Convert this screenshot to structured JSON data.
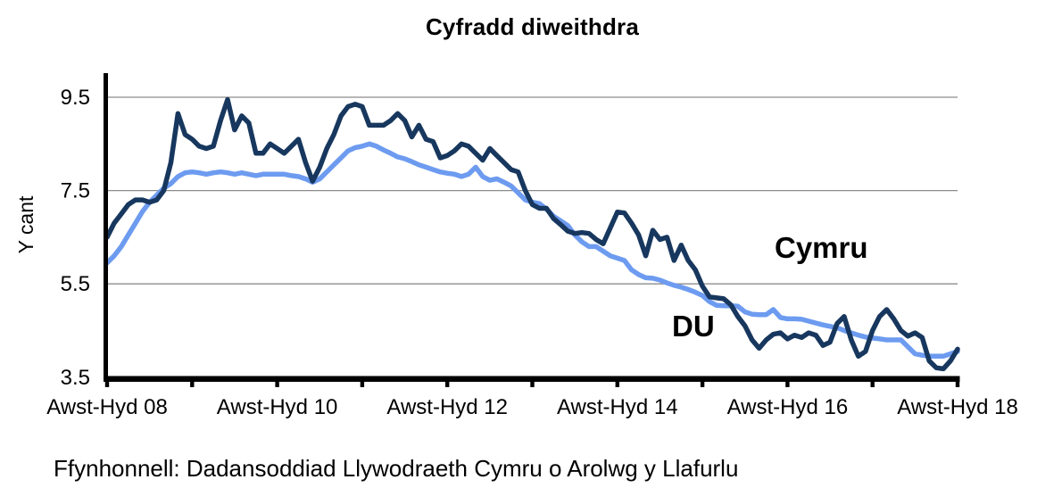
{
  "source": "Ffynhonnell: Dadansoddiad Llywodraeth Cymru o Arolwg y Llafurlu",
  "chart_data": {
    "type": "line",
    "title": "Cyfradd diweithdra",
    "ylabel": "Y cant",
    "xlabel": "",
    "ylim": [
      3.5,
      9.96
    ],
    "y_ticks": [
      9.5,
      7.5,
      5.5,
      3.5
    ],
    "gridline_values": [
      9.5,
      7.5,
      5.5
    ],
    "gridline_color": "#8C8C8C",
    "axis_color": "#000000",
    "legend_position": "inline-annotations",
    "x_tick_count": 11,
    "x_tick_labels": [
      "Awst-Hyd 08",
      "Awst-Hyd 10",
      "Awst-Hyd 12",
      "Awst-Hyd 14",
      "Awst-Hyd 16",
      "Awst-Hyd 18"
    ],
    "series": [
      {
        "name": "DU",
        "color": "#6D9BF0",
        "values": [
          5.95,
          6.1,
          6.3,
          6.55,
          6.8,
          7.05,
          7.25,
          7.4,
          7.55,
          7.65,
          7.8,
          7.88,
          7.9,
          7.88,
          7.85,
          7.88,
          7.9,
          7.88,
          7.85,
          7.88,
          7.85,
          7.82,
          7.85,
          7.85,
          7.85,
          7.85,
          7.82,
          7.8,
          7.75,
          7.68,
          7.75,
          7.9,
          8.05,
          8.2,
          8.35,
          8.42,
          8.45,
          8.5,
          8.45,
          8.37,
          8.3,
          8.22,
          8.18,
          8.12,
          8.05,
          8.0,
          7.95,
          7.9,
          7.87,
          7.85,
          7.8,
          7.85,
          8.0,
          7.8,
          7.72,
          7.75,
          7.68,
          7.6,
          7.45,
          7.3,
          7.25,
          7.22,
          7.1,
          6.95,
          6.85,
          6.75,
          6.55,
          6.4,
          6.3,
          6.3,
          6.2,
          6.1,
          6.05,
          6.0,
          5.8,
          5.7,
          5.63,
          5.62,
          5.58,
          5.52,
          5.47,
          5.43,
          5.38,
          5.32,
          5.25,
          5.12,
          5.04,
          5.03,
          5.03,
          5.02,
          4.9,
          4.85,
          4.84,
          4.84,
          4.95,
          4.78,
          4.75,
          4.75,
          4.74,
          4.7,
          4.66,
          4.62,
          4.59,
          4.56,
          4.5,
          4.45,
          4.4,
          4.36,
          4.34,
          4.32,
          4.3,
          4.3,
          4.3,
          4.15,
          4.0,
          3.97,
          3.95,
          3.95,
          3.95,
          4.0,
          4.05
        ]
      },
      {
        "name": "Cymru",
        "color": "#17375E",
        "values": [
          6.5,
          6.8,
          7.0,
          7.2,
          7.3,
          7.3,
          7.25,
          7.3,
          7.5,
          8.1,
          9.15,
          8.7,
          8.6,
          8.45,
          8.4,
          8.45,
          9.0,
          9.45,
          8.8,
          9.1,
          8.95,
          8.3,
          8.3,
          8.5,
          8.4,
          8.3,
          8.45,
          8.6,
          8.1,
          7.7,
          8.0,
          8.4,
          8.7,
          9.1,
          9.3,
          9.35,
          9.3,
          8.9,
          8.9,
          8.9,
          9.0,
          9.15,
          9.0,
          8.65,
          8.9,
          8.6,
          8.55,
          8.2,
          8.25,
          8.35,
          8.5,
          8.45,
          8.3,
          8.15,
          8.4,
          8.25,
          8.1,
          7.95,
          7.9,
          7.5,
          7.2,
          7.12,
          7.12,
          6.9,
          6.77,
          6.63,
          6.58,
          6.6,
          6.58,
          6.45,
          6.36,
          6.7,
          7.04,
          7.02,
          6.8,
          6.55,
          6.1,
          6.65,
          6.45,
          6.5,
          6.0,
          6.33,
          6.0,
          5.8,
          5.45,
          5.22,
          5.2,
          5.18,
          5.05,
          4.8,
          4.6,
          4.3,
          4.12,
          4.3,
          4.42,
          4.45,
          4.32,
          4.4,
          4.35,
          4.45,
          4.4,
          4.18,
          4.25,
          4.65,
          4.8,
          4.3,
          3.95,
          4.05,
          4.5,
          4.8,
          4.95,
          4.75,
          4.5,
          4.38,
          4.45,
          4.35,
          3.85,
          3.7,
          3.68,
          3.85,
          4.1
        ]
      }
    ],
    "annotations": [
      {
        "text": "Cymru",
        "color": "#17375E",
        "x": 868,
        "y": 289
      },
      {
        "text": "DU",
        "color": "#6D9BF0",
        "x": 753,
        "y": 377
      }
    ]
  }
}
